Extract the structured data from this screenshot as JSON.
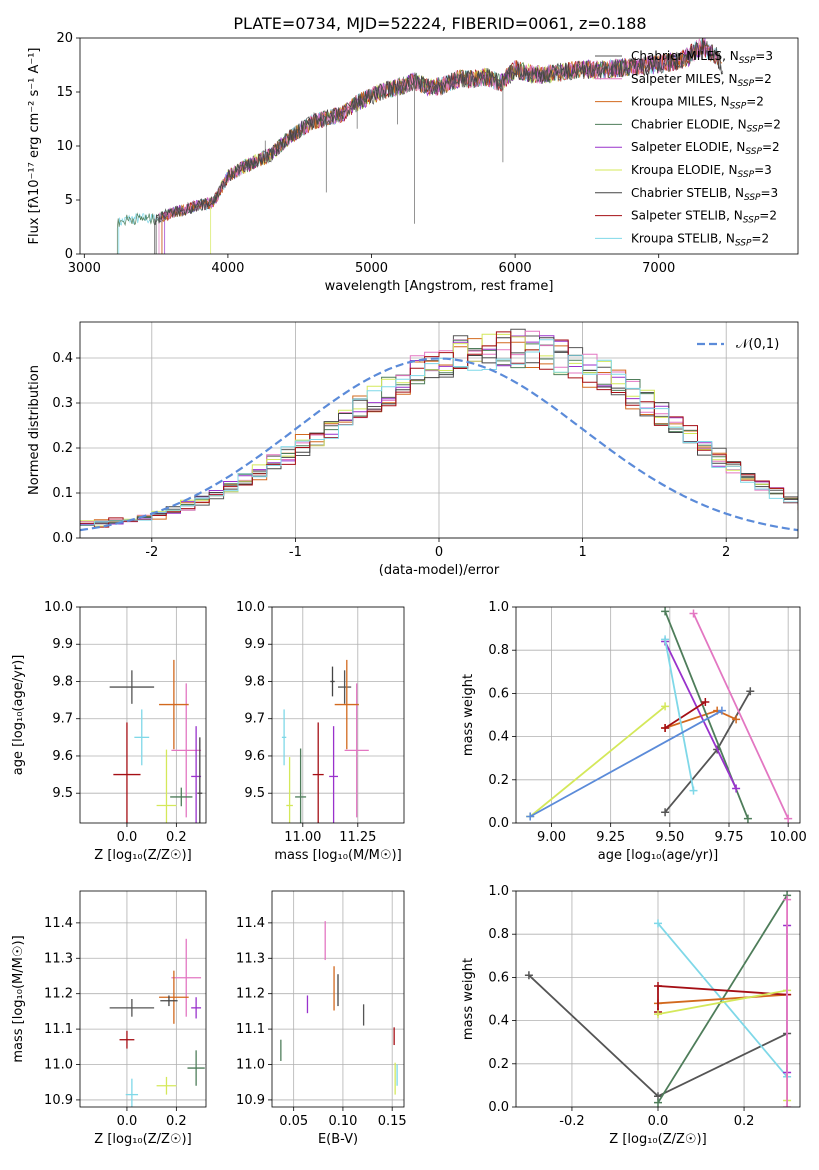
{
  "figure": {
    "title": "PLATE=0734, MJD=52224, FIBERID=0061, z=0.188"
  },
  "models": [
    {
      "name": "Chabrier MILES",
      "nssp": "3",
      "color": "#555555"
    },
    {
      "name": "Salpeter MILES",
      "nssp": "2",
      "color": "#e377c2"
    },
    {
      "name": "Kroupa MILES",
      "nssp": "2",
      "color": "#d2691e"
    },
    {
      "name": "Chabrier ELODIE",
      "nssp": "2",
      "color": "#4e7d5a"
    },
    {
      "name": "Salpeter ELODIE",
      "nssp": "2",
      "color": "#9932cc"
    },
    {
      "name": "Kroupa ELODIE",
      "nssp": "3",
      "color": "#d4e85a"
    },
    {
      "name": "Chabrier STELIB",
      "nssp": "3",
      "color": "#444444"
    },
    {
      "name": "Salpeter STELIB",
      "nssp": "2",
      "color": "#a50f15"
    },
    {
      "name": "Kroupa STELIB",
      "nssp": "2",
      "color": "#7fd8e8"
    }
  ],
  "chart_data": [
    {
      "id": "spectrum",
      "type": "line",
      "title": "PLATE=0734, MJD=52224, FIBERID=0061, z=0.188",
      "xlabel": "wavelength [Angstrom, rest frame]",
      "ylabel": "Flux [fλ10⁻¹⁷ erg cm⁻² s⁻¹ A⁻¹]",
      "xlim": [
        2970,
        7970
      ],
      "ylim": [
        0,
        20
      ],
      "xticks": [
        3000,
        4000,
        5000,
        6000,
        7000
      ],
      "yticks": [
        0,
        5,
        10,
        15,
        20
      ],
      "grid": false,
      "legend": "upper-right",
      "data_x": [
        3220,
        3300,
        3400,
        3500,
        3600,
        3700,
        3800,
        3900,
        4000,
        4100,
        4200,
        4300,
        4400,
        4500,
        4600,
        4700,
        4800,
        4900,
        5000,
        5100,
        5200,
        5300,
        5400,
        5500,
        5600,
        5700,
        5800,
        5900,
        6000,
        6100,
        6200,
        6300,
        6400,
        6500,
        6600,
        6700,
        6800,
        6900,
        7000,
        7100,
        7200,
        7300,
        7400,
        7450
      ],
      "data_y": [
        2.8,
        3.2,
        3.3,
        3.2,
        3.8,
        4.1,
        4.5,
        4.8,
        7.2,
        8.0,
        8.6,
        9.2,
        10.5,
        11.5,
        12.3,
        12.6,
        13.0,
        14.0,
        14.6,
        15.2,
        15.5,
        16.0,
        15.4,
        15.6,
        16.2,
        16.2,
        16.4,
        15.8,
        17.1,
        16.7,
        16.6,
        16.8,
        17.0,
        17.1,
        17.0,
        17.2,
        17.3,
        17.4,
        17.6,
        17.8,
        18.2,
        19.3,
        18.4,
        17.0
      ]
    },
    {
      "id": "residuals",
      "type": "histogram",
      "xlabel": "(data-model)/error",
      "ylabel": "Normed distribution",
      "xlim": [
        -2.5,
        2.5
      ],
      "ylim": [
        0,
        0.48
      ],
      "xticks": [
        -2,
        -1,
        0,
        1,
        2
      ],
      "yticks": [
        0.0,
        0.1,
        0.2,
        0.3,
        0.4
      ],
      "grid": true,
      "legend": "upper-right",
      "reference_label": "𝒩(0,1)",
      "reference_color": "#5b8bd9",
      "bin_width": 0.1,
      "bin_start": -2.5,
      "shape_values": [
        0.031,
        0.033,
        0.036,
        0.04,
        0.046,
        0.053,
        0.062,
        0.072,
        0.084,
        0.097,
        0.112,
        0.128,
        0.146,
        0.165,
        0.185,
        0.205,
        0.226,
        0.247,
        0.268,
        0.289,
        0.31,
        0.33,
        0.349,
        0.366,
        0.381,
        0.395,
        0.406,
        0.414,
        0.42,
        0.422,
        0.421,
        0.418,
        0.412,
        0.403,
        0.391,
        0.377,
        0.36,
        0.341,
        0.32,
        0.298,
        0.275,
        0.251,
        0.227,
        0.203,
        0.18,
        0.158,
        0.137,
        0.118,
        0.101,
        0.086,
        0.072,
        0.061,
        0.051,
        0.043,
        0.036,
        0.031,
        0.027,
        0.024,
        0.022,
        0.021
      ]
    },
    {
      "id": "age-vs-Z",
      "type": "scatter",
      "xlabel": "Z [log₁₀(Z/Z☉)]",
      "ylabel": "age  [log₁₀(age/yr)]",
      "xlim": [
        -0.19,
        0.32
      ],
      "ylim": [
        9.42,
        10.0
      ],
      "xticks": [
        0.0,
        0.2
      ],
      "yticks": [
        9.5,
        9.6,
        9.7,
        9.8,
        9.9,
        10.0
      ],
      "grid": true,
      "points": [
        {
          "model": 0,
          "x": 0.02,
          "y": 9.785,
          "xerr": 0.18,
          "yerr": 0.09
        },
        {
          "model": 7,
          "x": 0.0,
          "y": 9.55,
          "xerr": 0.11,
          "yerr": 0.28
        },
        {
          "model": 1,
          "x": 0.24,
          "y": 9.615,
          "xerr": 0.12,
          "yerr": 0.36
        },
        {
          "model": 2,
          "x": 0.19,
          "y": 9.738,
          "xerr": 0.12,
          "yerr": 0.24
        },
        {
          "model": 3,
          "x": 0.22,
          "y": 9.49,
          "xerr": 0.09,
          "yerr": 0.05
        },
        {
          "model": 4,
          "x": 0.28,
          "y": 9.545,
          "xerr": 0.04,
          "yerr": 0.27
        },
        {
          "model": 5,
          "x": 0.16,
          "y": 9.467,
          "xerr": 0.08,
          "yerr": 0.3
        },
        {
          "model": 8,
          "x": 0.06,
          "y": 9.65,
          "xerr": 0.06,
          "yerr": 0.15
        },
        {
          "model": 6,
          "x": 0.295,
          "y": 9.5,
          "xerr": 0.02,
          "yerr": 0.3
        }
      ]
    },
    {
      "id": "age-vs-mass",
      "type": "scatter",
      "xlabel": "mass [log₁₀(M/M☉)]",
      "ylabel": "",
      "xlim": [
        10.86,
        11.46
      ],
      "ylim": [
        9.42,
        10.0
      ],
      "xticks": [
        11.0,
        11.25
      ],
      "yticks": [
        9.5,
        9.6,
        9.7,
        9.8,
        9.9,
        10.0
      ],
      "grid": true,
      "points": [
        {
          "model": 0,
          "x": 11.19,
          "y": 9.785,
          "xerr": 0.06,
          "yerr": 0.09
        },
        {
          "model": 7,
          "x": 11.07,
          "y": 9.55,
          "xerr": 0.05,
          "yerr": 0.28
        },
        {
          "model": 1,
          "x": 11.245,
          "y": 9.615,
          "xerr": 0.11,
          "yerr": 0.36
        },
        {
          "model": 2,
          "x": 11.2,
          "y": 9.738,
          "xerr": 0.11,
          "yerr": 0.24
        },
        {
          "model": 3,
          "x": 10.99,
          "y": 9.49,
          "xerr": 0.05,
          "yerr": 0.26
        },
        {
          "model": 4,
          "x": 11.14,
          "y": 9.545,
          "xerr": 0.04,
          "yerr": 0.27
        },
        {
          "model": 5,
          "x": 10.94,
          "y": 9.467,
          "xerr": 0.03,
          "yerr": 0.26
        },
        {
          "model": 8,
          "x": 10.915,
          "y": 9.65,
          "xerr": 0.02,
          "yerr": 0.15
        },
        {
          "model": 6,
          "x": 11.135,
          "y": 9.8,
          "xerr": 0.02,
          "yerr": 0.08
        }
      ]
    },
    {
      "id": "weight-vs-age",
      "type": "line",
      "xlabel": "age  [log₁₀(age/yr)]",
      "ylabel": "mass weight",
      "xlim": [
        8.85,
        10.05
      ],
      "ylim": [
        0,
        1
      ],
      "xticks": [
        9.0,
        9.25,
        9.5,
        9.75,
        10.0
      ],
      "yticks": [
        0.0,
        0.2,
        0.4,
        0.6,
        0.8,
        1.0
      ],
      "grid": true,
      "series": [
        {
          "model": 0,
          "x": [
            9.48,
            9.7,
            9.84
          ],
          "y": [
            0.05,
            0.34,
            0.61
          ]
        },
        {
          "model": 1,
          "x": [
            9.6,
            10.0
          ],
          "y": [
            0.97,
            0.02
          ]
        },
        {
          "model": 2,
          "x": [
            9.48,
            9.7,
            9.78
          ],
          "y": [
            0.44,
            0.52,
            0.48
          ]
        },
        {
          "model": 3,
          "x": [
            9.48,
            9.83
          ],
          "y": [
            0.98,
            0.02
          ]
        },
        {
          "model": 4,
          "x": [
            9.48,
            9.78
          ],
          "y": [
            0.84,
            0.16
          ]
        },
        {
          "model": 5,
          "x": [
            8.91,
            9.48
          ],
          "y": [
            0.03,
            0.54
          ]
        },
        {
          "model": 7,
          "x": [
            9.48,
            9.65
          ],
          "y": [
            0.44,
            0.56
          ]
        },
        {
          "model": 8,
          "x": [
            9.48,
            9.6
          ],
          "y": [
            0.85,
            0.15
          ]
        },
        {
          "model": 9,
          "x": [
            8.91,
            9.72
          ],
          "y": [
            0.03,
            0.52
          ]
        }
      ]
    },
    {
      "id": "mass-vs-Z",
      "type": "scatter",
      "xlabel": "Z [log₁₀(Z/Z☉)]",
      "ylabel": "mass [log₁₀(M/M☉)]",
      "xlim": [
        -0.19,
        0.32
      ],
      "ylim": [
        10.88,
        11.49
      ],
      "xticks": [
        0.0,
        0.2
      ],
      "yticks": [
        10.9,
        11.0,
        11.1,
        11.2,
        11.3,
        11.4
      ],
      "grid": true,
      "points": [
        {
          "model": 0,
          "x": 0.02,
          "y": 11.16,
          "xerr": 0.18,
          "yerr": 0.05
        },
        {
          "model": 7,
          "x": 0.0,
          "y": 11.07,
          "xerr": 0.06,
          "yerr": 0.05
        },
        {
          "model": 1,
          "x": 0.24,
          "y": 11.245,
          "xerr": 0.12,
          "yerr": 0.22
        },
        {
          "model": 2,
          "x": 0.19,
          "y": 11.19,
          "xerr": 0.12,
          "yerr": 0.15
        },
        {
          "model": 3,
          "x": 0.28,
          "y": 10.99,
          "xerr": 0.07,
          "yerr": 0.1
        },
        {
          "model": 4,
          "x": 0.28,
          "y": 11.16,
          "xerr": 0.04,
          "yerr": 0.06
        },
        {
          "model": 5,
          "x": 0.16,
          "y": 10.94,
          "xerr": 0.08,
          "yerr": 0.05
        },
        {
          "model": 8,
          "x": 0.02,
          "y": 10.915,
          "xerr": 0.05,
          "yerr": 0.09
        },
        {
          "model": 6,
          "x": 0.17,
          "y": 11.18,
          "xerr": 0.07,
          "yerr": 0.03
        }
      ]
    },
    {
      "id": "mass-vs-EBV",
      "type": "scatter",
      "xlabel": "E(B-V)",
      "ylabel": "",
      "xlim": [
        0.028,
        0.162
      ],
      "ylim": [
        10.88,
        11.49
      ],
      "xticks": [
        0.05,
        0.1,
        0.15
      ],
      "yticks": [
        10.9,
        11.0,
        11.1,
        11.2,
        11.3,
        11.4
      ],
      "grid": true,
      "points": [
        {
          "model": 3,
          "x": 0.037,
          "y": 11.04,
          "xerr": 0.0,
          "yerr": 0.06
        },
        {
          "model": 4,
          "x": 0.064,
          "y": 11.17,
          "xerr": 0.0,
          "yerr": 0.05
        },
        {
          "model": 1,
          "x": 0.082,
          "y": 11.35,
          "xerr": 0.0,
          "yerr": 0.11
        },
        {
          "model": 2,
          "x": 0.091,
          "y": 11.215,
          "xerr": 0.0,
          "yerr": 0.125
        },
        {
          "model": 6,
          "x": 0.095,
          "y": 11.21,
          "xerr": 0.0,
          "yerr": 0.09
        },
        {
          "model": 0,
          "x": 0.121,
          "y": 11.14,
          "xerr": 0.0,
          "yerr": 0.06
        },
        {
          "model": 7,
          "x": 0.152,
          "y": 11.08,
          "xerr": 0.0,
          "yerr": 0.05
        },
        {
          "model": 5,
          "x": 0.153,
          "y": 10.96,
          "xerr": 0.0,
          "yerr": 0.09
        },
        {
          "model": 8,
          "x": 0.155,
          "y": 10.97,
          "xerr": 0.0,
          "yerr": 0.06
        }
      ]
    },
    {
      "id": "weight-vs-Z",
      "type": "line",
      "xlabel": "Z [log₁₀(Z/Z☉)]",
      "ylabel": "mass weight",
      "xlim": [
        -0.33,
        0.33
      ],
      "ylim": [
        0,
        1
      ],
      "xticks": [
        -0.2,
        0.0,
        0.2
      ],
      "yticks": [
        0.0,
        0.2,
        0.4,
        0.6,
        0.8,
        1.0
      ],
      "grid": true,
      "series": [
        {
          "model": 0,
          "x": [
            -0.3,
            0.0,
            0.3
          ],
          "y": [
            0.61,
            0.05,
            0.34
          ]
        },
        {
          "model": 3,
          "x": [
            0.0,
            0.3
          ],
          "y": [
            0.02,
            0.98
          ]
        },
        {
          "model": 8,
          "x": [
            0.0,
            0.3
          ],
          "y": [
            0.85,
            0.14
          ]
        },
        {
          "model": 2,
          "x": [
            0.0,
            0.3
          ],
          "y": [
            0.48,
            0.52
          ]
        },
        {
          "model": 7,
          "x": [
            0.0,
            0.0,
            0.3
          ],
          "y": [
            0.44,
            0.56,
            0.52
          ]
        },
        {
          "model": 5,
          "x": [
            0.0,
            0.3,
            0.3
          ],
          "y": [
            0.43,
            0.54,
            0.03
          ]
        },
        {
          "model": 4,
          "x": [
            0.3,
            0.3
          ],
          "y": [
            0.16,
            0.84
          ]
        },
        {
          "model": 1,
          "x": [
            0.3,
            0.3
          ],
          "y": [
            0.0,
            0.96
          ]
        }
      ]
    }
  ]
}
